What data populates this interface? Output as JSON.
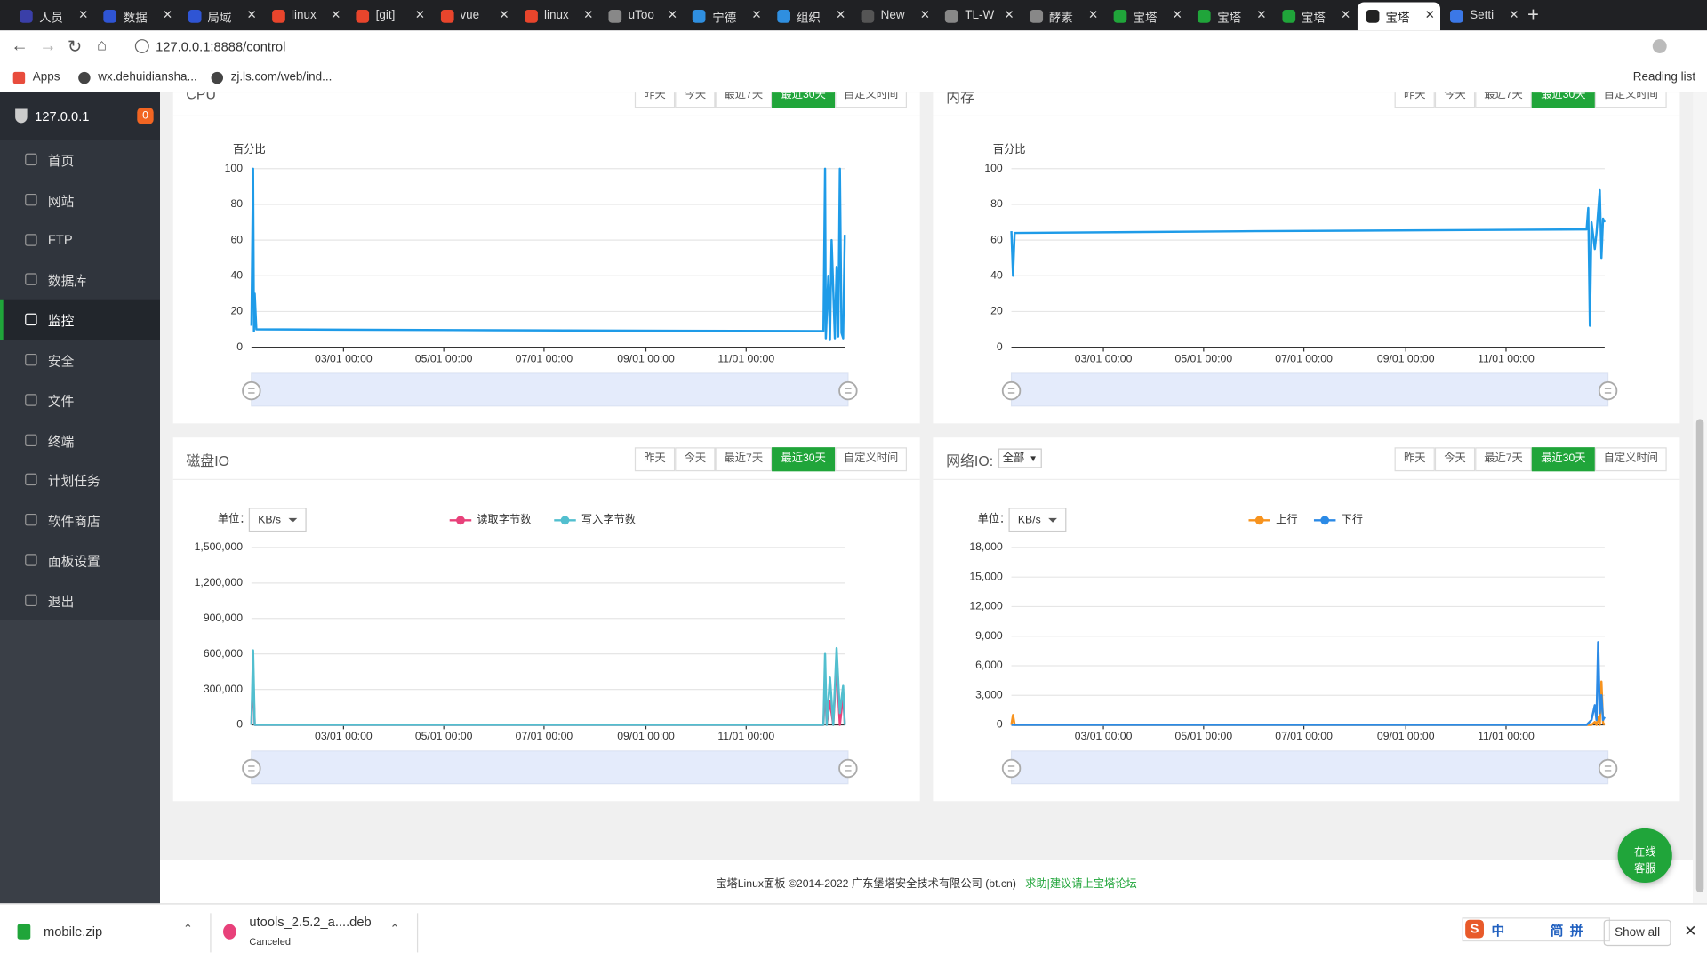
{
  "browser": {
    "tabs": [
      {
        "title": "人员",
        "icon": "#3a3fa8"
      },
      {
        "title": "数据",
        "icon": "#2f55d4"
      },
      {
        "title": "局域",
        "icon": "#2f55d4"
      },
      {
        "title": "linux",
        "icon": "#e8452c"
      },
      {
        "title": "[git]",
        "icon": "#e8452c"
      },
      {
        "title": "vue",
        "icon": "#e8452c"
      },
      {
        "title": "linux",
        "icon": "#e8452c"
      },
      {
        "title": "uToo",
        "icon": "#888888"
      },
      {
        "title": "宁德",
        "icon": "#2f8fe0"
      },
      {
        "title": "组织",
        "icon": "#2f8fe0"
      },
      {
        "title": "New",
        "icon": "#555555"
      },
      {
        "title": "TL-W",
        "icon": "#888888"
      },
      {
        "title": "酵素",
        "icon": "#888888"
      },
      {
        "title": "宝塔",
        "icon": "#20a53a"
      },
      {
        "title": "宝塔",
        "icon": "#20a53a"
      },
      {
        "title": "宝塔",
        "icon": "#20a53a"
      },
      {
        "title": "宝塔",
        "icon": "#222222"
      },
      {
        "title": "Setti",
        "icon": "#3b78e7"
      }
    ],
    "active_tab": 16,
    "url": "127.0.0.1:8888/control",
    "bookmarks": [
      "Apps",
      "wx.dehuidiansha...",
      "zj.ls.com/web/ind..."
    ],
    "reading_list": "Reading list"
  },
  "sidebar": {
    "host": "127.0.0.1",
    "badge": "0",
    "menu": [
      "首页",
      "网站",
      "FTP",
      "数据库",
      "监控",
      "安全",
      "文件",
      "终端",
      "计划任务",
      "软件商店",
      "面板设置",
      "退出"
    ],
    "active": 4
  },
  "chart_data": [
    {
      "type": "line",
      "title": "CPU",
      "buttons": [
        "昨天",
        "今天",
        "最近7天",
        "最近30天",
        "自定义时间"
      ],
      "active_button": 3,
      "y_name": "百分比",
      "x": [
        "01/04 00:00",
        "01/05 00:00",
        "01/05 12:00",
        "01/06 00:00",
        "01/07 00:00",
        "06/01 00:00",
        "12/18 00:00",
        "12/19 00:00",
        "12/19 12:00",
        "12/21 00:00",
        "12/22 00:00",
        "12/23 00:00",
        "12/25 00:00",
        "12/26 00:00",
        "12/27 00:00",
        "12/28 00:00",
        "12/29 00:00",
        "12/30 00:00",
        "12/31 00:00"
      ],
      "series": [
        {
          "color": "#1e9be8",
          "values": [
            12,
            100,
            9,
            30,
            10,
            9.5,
            9,
            100,
            5,
            40,
            4,
            60,
            5,
            45,
            6,
            100,
            8,
            5,
            63
          ]
        }
      ],
      "xlim": [
        "01/04 00:00",
        "12/31 00:00"
      ],
      "xticks": [
        "03/01 00:00",
        "05/01 00:00",
        "07/01 00:00",
        "09/01 00:00",
        "11/01 00:00"
      ],
      "ylim": [
        0,
        100
      ],
      "yticks": [
        0,
        20,
        40,
        60,
        80,
        100
      ],
      "grid": true
    },
    {
      "type": "line",
      "title": "内存",
      "buttons": [
        "昨天",
        "今天",
        "最近7天",
        "最近30天",
        "自定义时间"
      ],
      "active_button": 3,
      "y_name": "百分比",
      "x": [
        "01/04 00:00",
        "01/05 00:00",
        "01/06 00:00",
        "01/07 00:00",
        "06/01 00:00",
        "12/20 00:00",
        "12/21 00:00",
        "12/22 00:00",
        "12/23 00:00",
        "12/25 00:00",
        "12/26 00:00",
        "12/28 00:00",
        "12/29 00:00",
        "12/30 00:00",
        "12/31 00:00"
      ],
      "series": [
        {
          "color": "#1e9be8",
          "values": [
            65,
            40,
            64,
            64,
            65,
            66,
            78,
            12,
            70,
            55,
            64,
            88,
            50,
            72,
            70
          ]
        }
      ],
      "xlim": [
        "01/04 00:00",
        "12/31 00:00"
      ],
      "xticks": [
        "03/01 00:00",
        "05/01 00:00",
        "07/01 00:00",
        "09/01 00:00",
        "11/01 00:00"
      ],
      "ylim": [
        0,
        100
      ],
      "yticks": [
        0,
        20,
        40,
        60,
        80,
        100
      ],
      "grid": true
    },
    {
      "type": "line",
      "title": "磁盘IO",
      "buttons": [
        "昨天",
        "今天",
        "最近7天",
        "最近30天",
        "自定义时间"
      ],
      "active_button": 3,
      "unit_label": "单位：",
      "unit": "KB/s",
      "x": [
        "01/04 00:00",
        "01/05 00:00",
        "01/06 00:00",
        "01/07 00:00",
        "06/01 00:00",
        "12/18 00:00",
        "12/19 00:00",
        "12/20 00:00",
        "12/22 00:00",
        "12/24 00:00",
        "12/26 00:00",
        "12/28 00:00",
        "12/30 00:00",
        "12/31 00:00"
      ],
      "series": [
        {
          "name": "读取字节数",
          "color": "#e8417a",
          "values": [
            0,
            450000,
            0,
            0,
            0,
            0,
            350000,
            0,
            200000,
            0,
            500000,
            0,
            250000,
            0
          ]
        },
        {
          "name": "写入字节数",
          "color": "#52bfcf",
          "values": [
            0,
            630000,
            0,
            0,
            0,
            0,
            600000,
            0,
            400000,
            0,
            650000,
            100000,
            330000,
            0
          ]
        }
      ],
      "xlim": [
        "01/04 00:00",
        "12/31 00:00"
      ],
      "xticks": [
        "03/01 00:00",
        "05/01 00:00",
        "07/01 00:00",
        "09/01 00:00",
        "11/01 00:00"
      ],
      "ylim": [
        0,
        1500000
      ],
      "yticks": [
        0,
        {
          "value": 300000,
          "label": "300,000"
        },
        {
          "value": 600000,
          "label": "600,000"
        },
        {
          "value": 900000,
          "label": "900,000"
        },
        {
          "value": 1200000,
          "label": "1,200,000"
        },
        {
          "value": 1500000,
          "label": "1,500,000"
        }
      ],
      "grid": true
    },
    {
      "type": "line",
      "title": "网络IO:",
      "filter": "全部",
      "buttons": [
        "昨天",
        "今天",
        "最近7天",
        "最近30天",
        "自定义时间"
      ],
      "active_button": 3,
      "unit_label": "单位：",
      "unit": "KB/s",
      "x": [
        "01/04 00:00",
        "01/05 00:00",
        "01/06 00:00",
        "06/01 00:00",
        "12/20 00:00",
        "12/23 00:00",
        "12/25 00:00",
        "12/26 00:00",
        "12/27 00:00",
        "12/28 00:00",
        "12/29 00:00",
        "12/30 00:00",
        "12/31 00:00"
      ],
      "series": [
        {
          "name": "上行",
          "color": "#f7931e",
          "values": [
            0,
            1000,
            0,
            0,
            0,
            0,
            300,
            0,
            800,
            0,
            4400,
            200,
            0
          ]
        },
        {
          "name": "下行",
          "color": "#2b8ae6",
          "values": [
            0,
            0,
            0,
            0,
            0,
            500,
            2000,
            500,
            8400,
            1200,
            3000,
            500,
            800
          ]
        }
      ],
      "xlim": [
        "01/04 00:00",
        "12/31 00:00"
      ],
      "xticks": [
        "03/01 00:00",
        "05/01 00:00",
        "07/01 00:00",
        "09/01 00:00",
        "11/01 00:00"
      ],
      "ylim": [
        0,
        18000
      ],
      "yticks": [
        0,
        {
          "value": 3000,
          "label": "3,000"
        },
        {
          "value": 6000,
          "label": "6,000"
        },
        {
          "value": 9000,
          "label": "9,000"
        },
        {
          "value": 12000,
          "label": "12,000"
        },
        {
          "value": 15000,
          "label": "15,000"
        },
        {
          "value": 18000,
          "label": "18,000"
        }
      ],
      "grid": true
    }
  ],
  "footer": {
    "copyright": "宝塔Linux面板 ©2014-2022 广东堡塔安全技术有限公司 (bt.cn)",
    "link": "求助|建议请上宝塔论坛"
  },
  "chat_button": [
    "在线",
    "客服"
  ],
  "downloads": [
    {
      "name": "mobile.zip"
    },
    {
      "name": "utools_2.5.2_a....deb",
      "status": "Canceled"
    }
  ],
  "ime": [
    "中",
    "简",
    "拼"
  ],
  "show_all": "Show all"
}
